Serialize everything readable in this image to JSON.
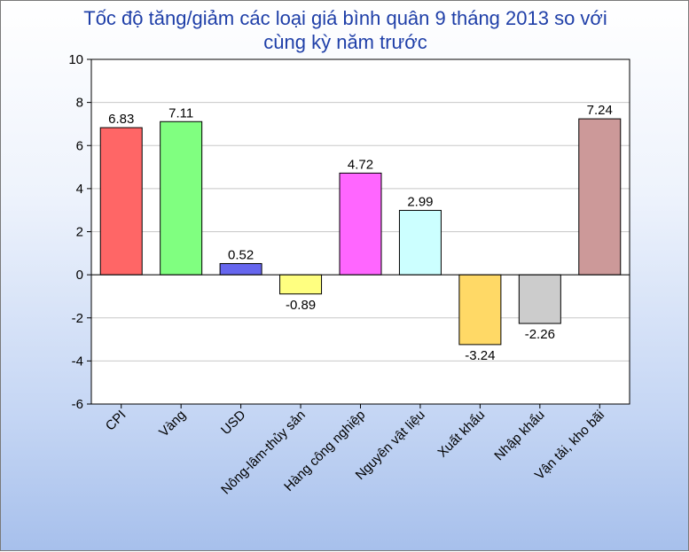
{
  "chart_data": {
    "type": "bar",
    "title": "Tốc độ tăng/giảm các loại giá bình quân 9 tháng 2013 so với cùng kỳ năm trước",
    "title_lines": [
      "Tốc độ tăng/giảm các loại giá bình quân 9 tháng 2013 so với",
      "cùng kỳ năm trước"
    ],
    "categories": [
      "CPI",
      "Vàng",
      "USD",
      "Nông-lâm-thủy sản",
      "Hàng công nghiệp",
      "Nguyên vật liệu",
      "Xuất khẩu",
      "Nhập khẩu",
      "Vận tải, kho bãi"
    ],
    "values": [
      6.83,
      7.11,
      0.52,
      -0.89,
      4.72,
      2.99,
      -3.24,
      -2.26,
      7.24
    ],
    "value_labels": [
      "6.83",
      "7.11",
      "0.52",
      "-0.89",
      "4.72",
      "2.99",
      "-3.24",
      "-2.26",
      "7.24"
    ],
    "colors": [
      "#ff6666",
      "#80ff80",
      "#6666ee",
      "#ffff80",
      "#ff66ff",
      "#ccffff",
      "#ffd966",
      "#cccccc",
      "#cc9999"
    ],
    "ylim": [
      -6,
      10
    ],
    "yticks": [
      -6,
      -4,
      -2,
      0,
      2,
      4,
      6,
      8,
      10
    ],
    "xlabel": "",
    "ylabel": "",
    "grid": true,
    "legend": "none"
  }
}
